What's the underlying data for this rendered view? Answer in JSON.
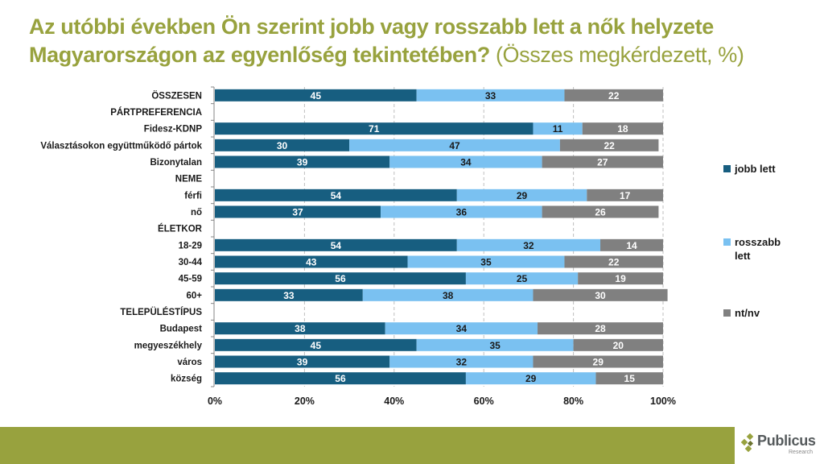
{
  "title": {
    "main": "Az utóbbi években Ön szerint jobb vagy rosszabb lett a nők helyzete Magyarországon az egyenlőség tekintetében?",
    "subtitle": "(Összes megkérdezett, %)"
  },
  "colors": {
    "jobb": "#175E80",
    "rosszabb": "#7AC1F1",
    "ntnv": "#808080",
    "brand": "#98A23E"
  },
  "chart_data": {
    "type": "bar",
    "orientation": "horizontal",
    "stacked": "percent",
    "title": "Az utóbbi években Ön szerint jobb vagy rosszabb lett a nők helyzete Magyarországon az egyenlőség tekintetében? (Összes megkérdezett, %)",
    "xlabel": "",
    "ylabel": "",
    "xlim": [
      0,
      100
    ],
    "x_ticks": [
      "0%",
      "20%",
      "40%",
      "60%",
      "80%",
      "100%"
    ],
    "grid": "vertical dashed",
    "legend_position": "right",
    "categories": [
      "ÖSSZESEN",
      "PÁRTPREFERENCIA",
      "Fidesz-KDNP",
      "Választásokon együttműködő pártok",
      "Bizonytalan",
      "NEME",
      "férfi",
      "nő",
      "ÉLETKOR",
      "18-29",
      "30-44",
      "45-59",
      "60+",
      "TELEPÜLÉSTÍPUS",
      "Budapest",
      "megyeszékhely",
      "város",
      "község"
    ],
    "series": [
      {
        "name": "jobb lett",
        "values": [
          45,
          null,
          71,
          30,
          39,
          null,
          54,
          37,
          null,
          54,
          43,
          56,
          33,
          null,
          38,
          45,
          39,
          56
        ]
      },
      {
        "name": "rosszabb lett",
        "values": [
          33,
          null,
          11,
          47,
          34,
          null,
          29,
          36,
          null,
          32,
          35,
          25,
          38,
          null,
          34,
          35,
          32,
          29
        ]
      },
      {
        "name": "nt/nv",
        "values": [
          22,
          null,
          18,
          22,
          27,
          null,
          17,
          26,
          null,
          14,
          22,
          19,
          30,
          null,
          28,
          20,
          29,
          15
        ]
      }
    ]
  },
  "legend": [
    {
      "label": "jobb lett"
    },
    {
      "label": "rosszabb lett"
    },
    {
      "label": "nt/nv"
    }
  ],
  "logo": {
    "name": "Publicus",
    "sub": "Research"
  }
}
